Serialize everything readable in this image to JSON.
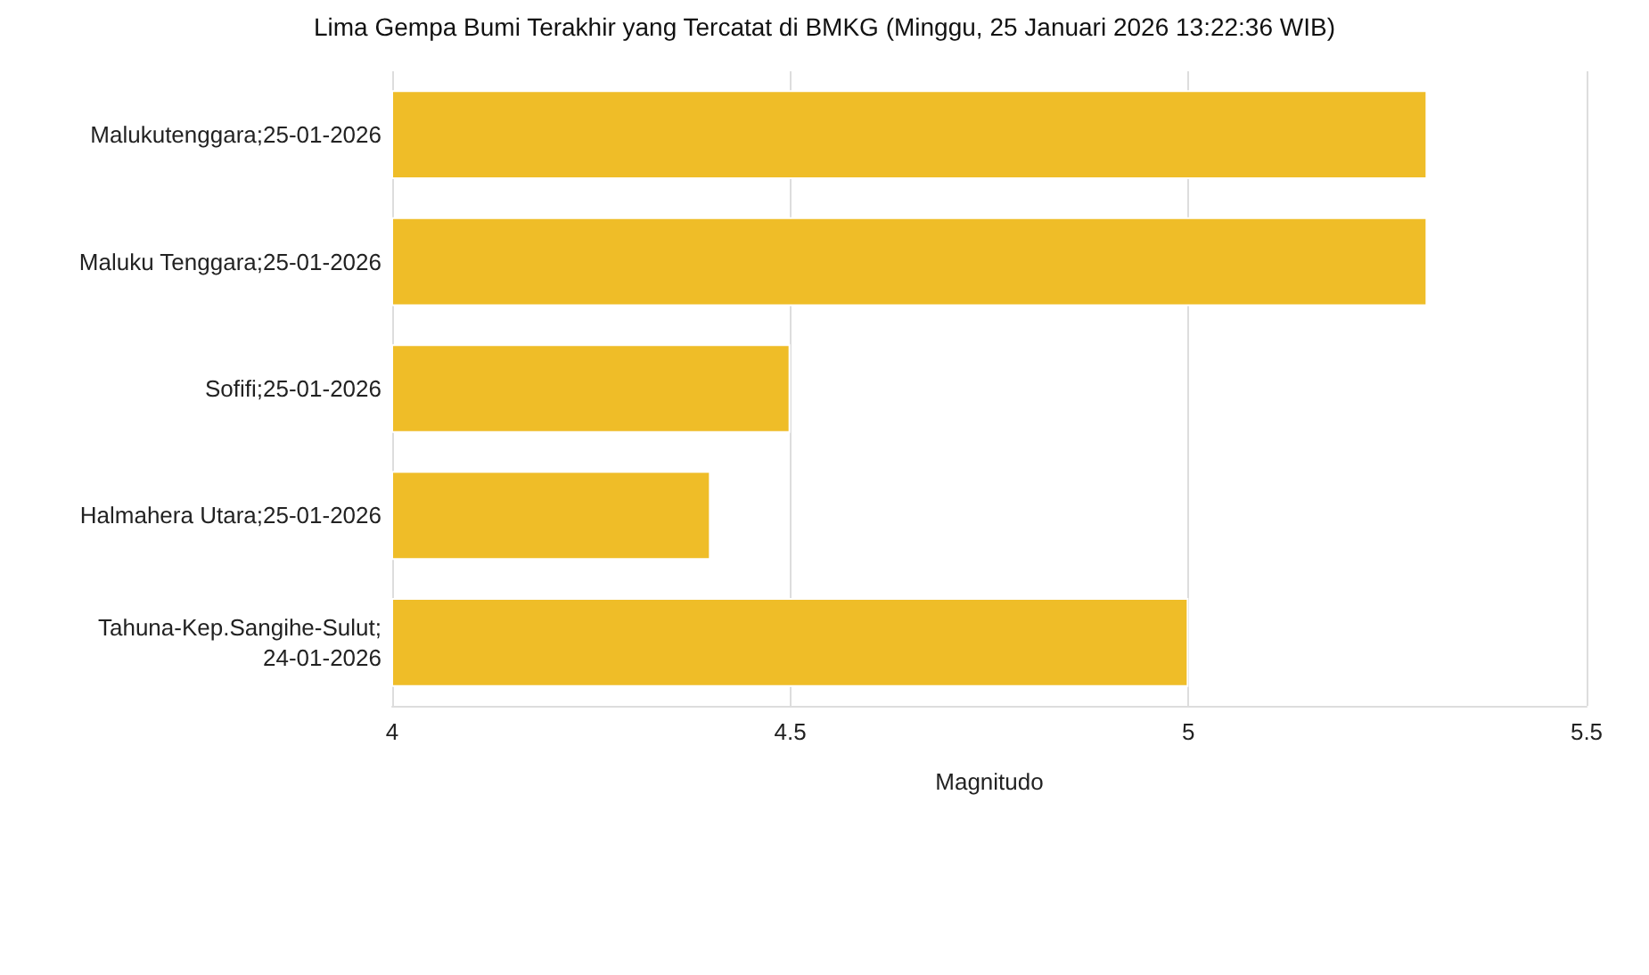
{
  "chart_data": {
    "type": "bar",
    "orientation": "horizontal",
    "title": "Lima Gempa Bumi Terakhir yang Tercatat di BMKG (Minggu, 25 Januari 2026 13:22:36 WIB)",
    "xlabel": "Magnitudo",
    "categories": [
      "Malukutenggara;25-01-2026",
      "Maluku Tenggara;25-01-2026",
      "Sofifi;25-01-2026",
      "Halmahera Utara;25-01-2026",
      "Tahuna-Kep.Sangihe-Sulut;\n24-01-2026"
    ],
    "values": [
      5.3,
      5.3,
      4.5,
      4.4,
      5.0
    ],
    "color": "#efbd28",
    "xlim": [
      4,
      5.5
    ],
    "xticks": [
      4,
      4.5,
      5,
      5.5
    ],
    "grid": "x"
  }
}
